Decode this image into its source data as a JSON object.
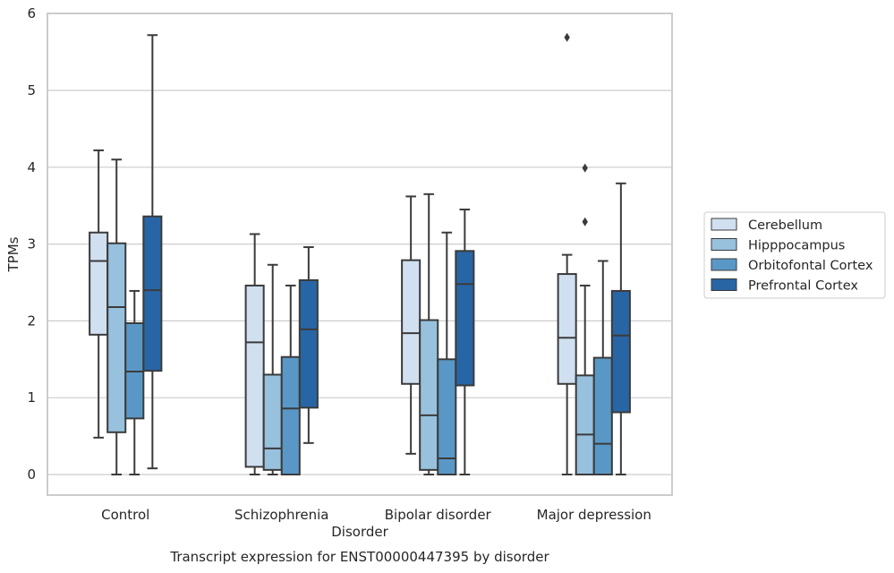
{
  "chart_data": {
    "type": "box",
    "title": "Transcript expression for ENST00000447395 by disorder",
    "xlabel": "Disorder",
    "ylabel": "TPMs",
    "ylim": [
      -0.27,
      6.0
    ],
    "yticks": [
      0,
      1,
      2,
      3,
      4,
      5,
      6
    ],
    "grid": true,
    "legend_position": "right",
    "categories": [
      "Control",
      "Schizophrenia",
      "Bipolar disorder",
      "Major depression"
    ],
    "series": [
      {
        "name": "Cerebellum",
        "color": "#d0e0f0",
        "boxes": [
          {
            "whisker_low": 0.48,
            "q1": 1.82,
            "median": 2.78,
            "q3": 3.15,
            "whisker_high": 4.22,
            "outliers": []
          },
          {
            "whisker_low": 0.0,
            "q1": 0.1,
            "median": 1.72,
            "q3": 2.46,
            "whisker_high": 3.13,
            "outliers": []
          },
          {
            "whisker_low": 0.27,
            "q1": 1.18,
            "median": 1.84,
            "q3": 2.79,
            "whisker_high": 3.62,
            "outliers": []
          },
          {
            "whisker_low": 0.0,
            "q1": 1.18,
            "median": 1.78,
            "q3": 2.61,
            "whisker_high": 2.86,
            "outliers": [
              5.69
            ]
          }
        ]
      },
      {
        "name": "Hipppocampus",
        "color": "#97c1dd",
        "boxes": [
          {
            "whisker_low": 0.0,
            "q1": 0.55,
            "median": 2.18,
            "q3": 3.01,
            "whisker_high": 4.1,
            "outliers": []
          },
          {
            "whisker_low": 0.0,
            "q1": 0.06,
            "median": 0.34,
            "q3": 1.3,
            "whisker_high": 2.73,
            "outliers": []
          },
          {
            "whisker_low": 0.0,
            "q1": 0.06,
            "median": 0.77,
            "q3": 2.01,
            "whisker_high": 3.65,
            "outliers": []
          },
          {
            "whisker_low": 0.0,
            "q1": 0.0,
            "median": 0.52,
            "q3": 1.29,
            "whisker_high": 2.46,
            "outliers": [
              3.99,
              3.29
            ]
          }
        ]
      },
      {
        "name": "Orbitofontal Cortex",
        "color": "#5998c6",
        "boxes": [
          {
            "whisker_low": 0.0,
            "q1": 0.73,
            "median": 1.34,
            "q3": 1.97,
            "whisker_high": 2.39,
            "outliers": []
          },
          {
            "whisker_low": 0.0,
            "q1": 0.0,
            "median": 0.86,
            "q3": 1.53,
            "whisker_high": 2.46,
            "outliers": []
          },
          {
            "whisker_low": 0.0,
            "q1": 0.0,
            "median": 0.21,
            "q3": 1.5,
            "whisker_high": 3.15,
            "outliers": []
          },
          {
            "whisker_low": 0.0,
            "q1": 0.0,
            "median": 0.4,
            "q3": 1.52,
            "whisker_high": 2.78,
            "outliers": []
          }
        ]
      },
      {
        "name": "Prefrontal Cortex",
        "color": "#2865a5",
        "boxes": [
          {
            "whisker_low": 0.08,
            "q1": 1.35,
            "median": 2.4,
            "q3": 3.36,
            "whisker_high": 5.72,
            "outliers": []
          },
          {
            "whisker_low": 0.41,
            "q1": 0.87,
            "median": 1.89,
            "q3": 2.53,
            "whisker_high": 2.96,
            "outliers": []
          },
          {
            "whisker_low": 0.0,
            "q1": 1.16,
            "median": 2.48,
            "q3": 2.91,
            "whisker_high": 3.45,
            "outliers": []
          },
          {
            "whisker_low": 0.0,
            "q1": 0.81,
            "median": 1.81,
            "q3": 2.39,
            "whisker_high": 3.79,
            "outliers": []
          }
        ]
      }
    ]
  },
  "colors": {
    "grid": "#cccccc",
    "frame": "#cccccc",
    "box_edge": "#3b3b3b",
    "text": "#262626"
  }
}
